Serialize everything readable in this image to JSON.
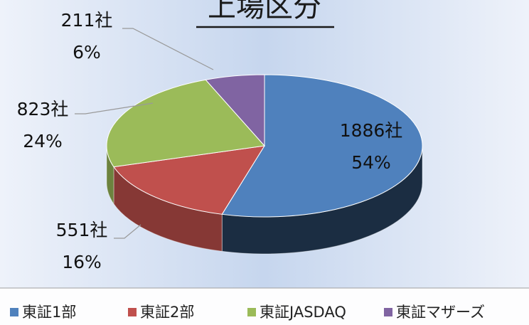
{
  "chart_data": {
    "type": "pie3d",
    "title": "上場区分",
    "categories": [
      "東証1部",
      "東証2部",
      "東証JASDAQ",
      "東証マザーズ"
    ],
    "values": [
      1886,
      551,
      823,
      211
    ],
    "value_labels": [
      "1886社",
      "551社",
      "823社",
      "211社"
    ],
    "percentages": [
      54,
      16,
      24,
      6
    ],
    "percentage_labels": [
      "54%",
      "16%",
      "24%",
      "6%"
    ],
    "colors": [
      "#4f81bd",
      "#c0504d",
      "#9bbb59",
      "#8064a2"
    ],
    "legend": "bottom"
  }
}
